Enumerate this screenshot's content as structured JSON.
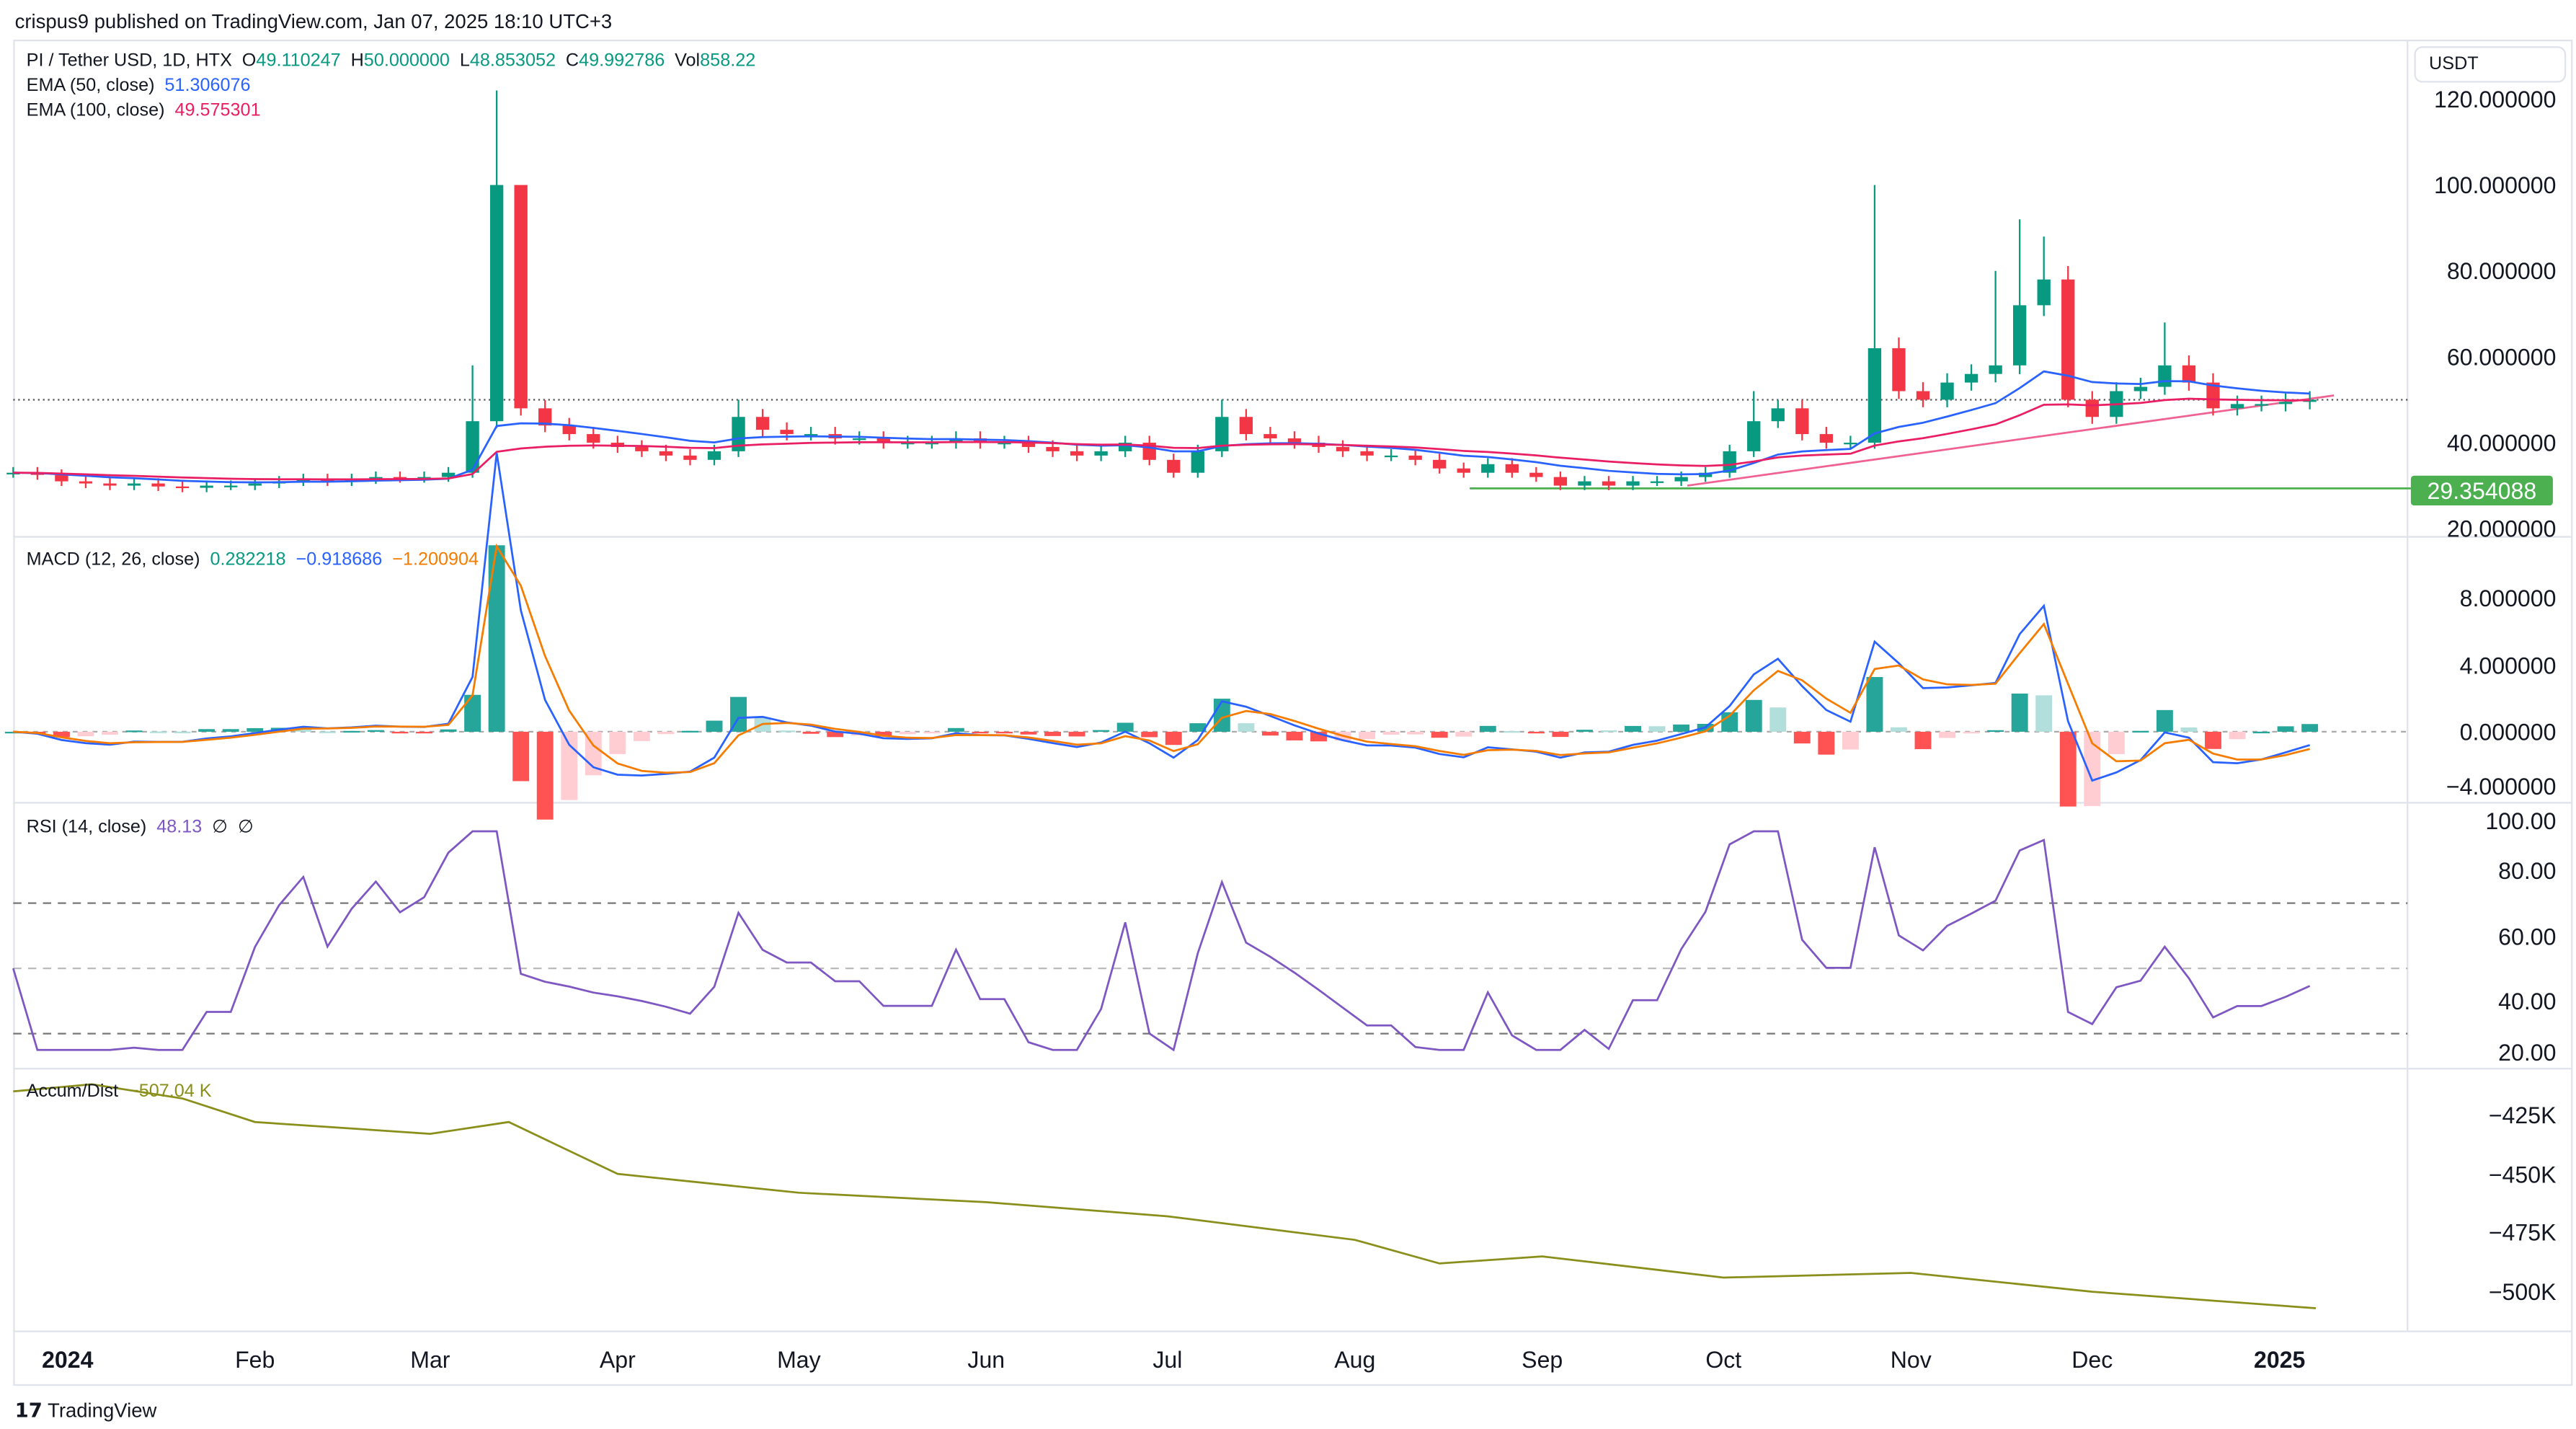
{
  "publisher_line": "crispus9 published on TradingView.com, Jan 07, 2025 18:10 UTC+3",
  "footer": {
    "logo_text": "TradingView"
  },
  "currency_button": "USDT",
  "legend": {
    "symbol": "PI / Tether USD, 1D, HTX",
    "o_label": "O",
    "o": "49.110247",
    "h_label": "H",
    "h": "50.000000",
    "l_label": "L",
    "l": "48.853052",
    "c_label": "C",
    "c": "49.992786",
    "vol_label": "Vol",
    "vol": "858.22",
    "ema50_label": "EMA (50, close)",
    "ema50": "51.306076",
    "ema100_label": "EMA (100, close)",
    "ema100": "49.575301",
    "macd_label": "MACD (12, 26, close)",
    "macd_hist": "0.282218",
    "macd": "−0.918686",
    "macd_signal": "−1.200904",
    "rsi_label": "RSI (14, close)",
    "rsi": "48.13",
    "rsi_extra1": "∅",
    "rsi_extra2": "∅",
    "ad_label": "Accum/Dist",
    "ad": "−507.04 K"
  },
  "colors": {
    "up": "#089981",
    "down": "#f23645",
    "ema50": "#2962ff",
    "ema100": "#e91e63",
    "macd": "#2962ff",
    "signal": "#f57c00",
    "rsi": "#7e57c2",
    "ad": "#8a8f1c",
    "support": "#4caf50",
    "trend": "#f06292"
  },
  "chart_data": [
    {
      "type": "candlestick",
      "title": "PI / Tether USD, 1D, HTX",
      "sample_step_days": 4,
      "dates_start": "2023-12-23",
      "close": [
        33,
        32.5,
        31,
        30.5,
        30,
        30.5,
        29.8,
        29.5,
        30,
        30,
        30.5,
        31,
        31.5,
        31,
        31.5,
        32,
        31.8,
        32,
        33,
        45,
        100,
        48,
        44,
        42,
        40,
        39,
        38,
        37,
        36,
        38,
        46,
        43,
        42,
        42,
        41,
        41,
        40,
        40,
        40,
        41,
        40,
        40,
        39,
        38,
        37,
        38,
        40,
        36,
        33,
        38,
        46,
        42,
        41,
        40,
        39,
        38,
        37,
        37,
        36,
        34,
        33,
        35,
        33,
        32,
        30,
        31,
        30,
        31,
        31,
        32,
        33,
        38,
        45,
        48,
        42,
        40,
        40,
        62,
        52,
        50,
        54,
        56,
        58,
        72,
        78,
        50,
        46,
        52,
        53,
        58,
        54,
        48,
        49,
        49,
        49.5,
        50
      ],
      "high_overrides": {
        "19": 58,
        "20": 122,
        "21": 75,
        "30": 50,
        "50": 50,
        "72": 52,
        "77": 100,
        "82": 80,
        "83": 92,
        "84": 88,
        "89": 68
      },
      "yaxis_ticks": [
        "120.000000",
        "100.000000",
        "80.000000",
        "60.000000",
        "40.000000",
        "20.000000"
      ],
      "ylim": [
        20,
        120
      ],
      "support_level": {
        "label": "29.354088",
        "value": 29.354088,
        "from": "2024-08-20"
      },
      "trendline": {
        "from": [
          "2024-09-25",
          30
        ],
        "to": [
          "2025-01-10",
          51
        ]
      },
      "last_price": 49.99
    },
    {
      "type": "line",
      "name": "MACD",
      "yaxis_ticks": [
        "8.000000",
        "4.000000",
        "0.000000",
        "−4.000000"
      ],
      "ylim": [
        -4,
        10
      ]
    },
    {
      "type": "line",
      "name": "RSI",
      "yaxis_ticks": [
        "100.00",
        "80.00",
        "60.00",
        "40.00",
        "20.00"
      ],
      "ylim": [
        20,
        100
      ],
      "bands": [
        70,
        50,
        30
      ]
    },
    {
      "type": "line",
      "name": "Accum/Dist",
      "dates": [
        "2023-12-23",
        "2024-01-05",
        "2024-01-20",
        "2024-02-01",
        "2024-03-01",
        "2024-03-14",
        "2024-04-01",
        "2024-05-01",
        "2024-06-01",
        "2024-07-01",
        "2024-08-01",
        "2024-08-15",
        "2024-09-01",
        "2024-10-01",
        "2024-11-01",
        "2024-12-01",
        "2025-01-07"
      ],
      "values_k": [
        -415,
        -412,
        -418,
        -428,
        -433,
        -428,
        -450,
        -458,
        -462,
        -468,
        -478,
        -488,
        -485,
        -494,
        -492,
        -500,
        -507
      ],
      "yaxis_ticks": [
        "−425K",
        "−450K",
        "−475K",
        "−500K"
      ]
    }
  ],
  "time_axis": [
    {
      "label": "2024",
      "date": "2024-01-01",
      "bold": true
    },
    {
      "label": "Feb",
      "date": "2024-02-01"
    },
    {
      "label": "Mar",
      "date": "2024-03-01"
    },
    {
      "label": "Apr",
      "date": "2024-04-01"
    },
    {
      "label": "May",
      "date": "2024-05-01"
    },
    {
      "label": "Jun",
      "date": "2024-06-01"
    },
    {
      "label": "Jul",
      "date": "2024-07-01"
    },
    {
      "label": "Aug",
      "date": "2024-08-01"
    },
    {
      "label": "Sep",
      "date": "2024-09-01"
    },
    {
      "label": "Oct",
      "date": "2024-10-01"
    },
    {
      "label": "Nov",
      "date": "2024-11-01"
    },
    {
      "label": "Dec",
      "date": "2024-12-01"
    },
    {
      "label": "2025",
      "date": "2025-01-01",
      "bold": true
    }
  ]
}
